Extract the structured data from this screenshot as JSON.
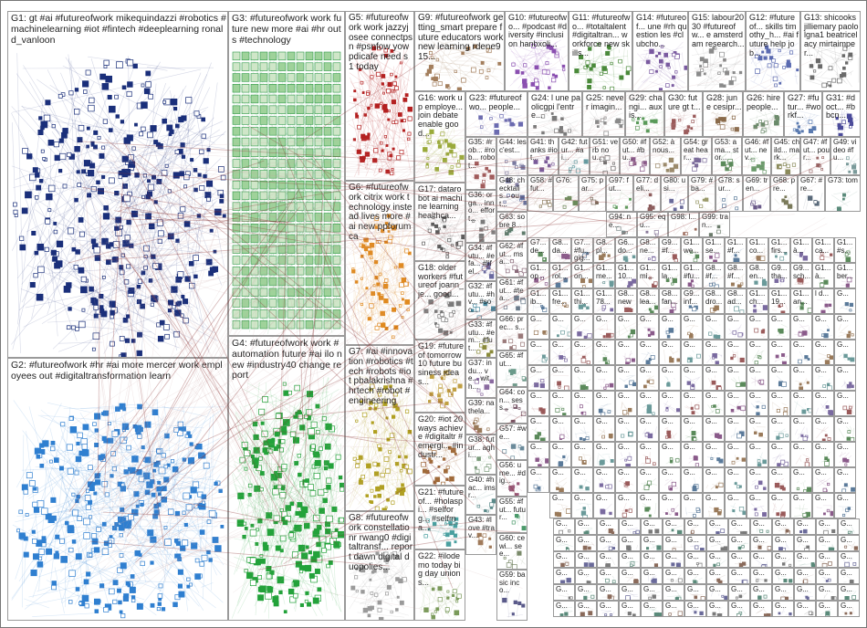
{
  "groups": [
    {
      "id": "G1",
      "label": "G1: gt #ai #futureofwork mikequindazzi #robotics #machinelearning #iot #fintech #deeplearning ronald_vanloon",
      "color": "#1a2f7a"
    },
    {
      "id": "G2",
      "label": "G2: #futureofwork #hr #ai more mercer work employees out #digitaltransformation learn",
      "color": "#2f7fd0"
    },
    {
      "id": "G3",
      "label": "G3: #futureofwork work future new more #ai #hr out s #technology",
      "color": "#2e9a48"
    },
    {
      "id": "G4",
      "label": "G4: #futureofwork work #automation future #ai ilo new #industry40 change report",
      "color": "#23a23a"
    },
    {
      "id": "G5",
      "label": "G5: #futureofwork work jazzyjosee connectpsn #psnfow yowpdicafe need s 1 today",
      "color": "#b42020"
    },
    {
      "id": "G6",
      "label": "G6: #futureofwork citrix work technology instead lives more #ai new ppforumca",
      "color": "#e08a20"
    },
    {
      "id": "G7",
      "label": "G7: #ai #innovation #robotics #tech #robots #iot pbalakrishna #hrtech #robot #engineering",
      "color": "#b0a020"
    },
    {
      "id": "G8",
      "label": "G8: #futureofwork constellationr rwang0 #digitaltransf... report dawn digital duopolies...",
      "color": "#9a9a9a"
    },
    {
      "id": "G9",
      "label": "G9: #futureofwork getting_smart prepare future educators work new learning rdene915...",
      "color": "#a37e5c"
    },
    {
      "id": "G10",
      "label": "G10: #futureofwo... #podcast #diversity #inclusion hanbxoli...",
      "color": "#8a4fb0"
    },
    {
      "id": "G11",
      "label": "G11: #futureofwo... #totaltalent #digitaltran... workforce new skills...",
      "color": "#4a8a3a"
    },
    {
      "id": "G12",
      "label": "G12: #futureof... skills timothy_h... #ai future help job...",
      "color": "#5a6ab0"
    },
    {
      "id": "G13",
      "label": "G13: shicooks jilliemary paololgna1 beatricelacy mirtaimper...",
      "color": "#6a6a6a"
    },
    {
      "id": "G14",
      "label": "G14: #futureof... une #rh question les #clubcho...",
      "color": "#7a5aa0"
    },
    {
      "id": "G15",
      "label": "G15: labour2030 #futureofw... e amsterdam research...",
      "color": "#8a8a8a"
    },
    {
      "id": "G16",
      "label": "G16: work up employe... join debate enable good...",
      "color": "#9aaa3a"
    },
    {
      "id": "G17",
      "label": "G17: datarobot ai machine learning healthca...",
      "color": "#5a5a5a"
    },
    {
      "id": "G18",
      "label": "G18: older workers #futureof joann_je... good...",
      "color": "#7a7a7a"
    },
    {
      "id": "G19",
      "label": "G19: #futureof tomorrow 10 future business ideas...",
      "color": "#c0a040"
    },
    {
      "id": "G20",
      "label": "G20: #iot 20 ways achieve #digitaltr #emergi... #industr...",
      "color": "#a06a3a"
    },
    {
      "id": "G21",
      "label": "G21: #futureof... #holaspi... #selforg... #selfma...",
      "color": "#4aa0a0"
    },
    {
      "id": "G22",
      "label": "G22: #ilodemo today big day unions...",
      "color": "#7a9a5a"
    },
    {
      "id": "G23",
      "label": "G23: #futureofwo... people...",
      "color": "#6a6ab0"
    },
    {
      "id": "G24",
      "label": "G24: l une paolicgpi l'entre...",
      "color": "#7a7a7a"
    },
    {
      "id": "G25",
      "label": "G25: never imagin...",
      "color": "#8a8a8a"
    },
    {
      "id": "G26",
      "label": "G26: hire people...",
      "color": "#6a8a6a"
    },
    {
      "id": "G27",
      "label": "G27: #futur... #workf...",
      "color": "#5a7ab0"
    },
    {
      "id": "G28",
      "label": "G28: june cesipr...",
      "color": "#8a6a4a"
    },
    {
      "id": "G29",
      "label": "G29: changi... auxis...",
      "color": "#5a9a5a"
    },
    {
      "id": "G30",
      "label": "G30: future gt t...",
      "color": "#9a5a5a"
    },
    {
      "id": "G31",
      "label": "G31: #doct... #bbcn...",
      "color": "#4a4a9a"
    },
    {
      "id": "G32",
      "label": "G32: #futu... #hv... #soc...",
      "color": "#4a8aa0"
    },
    {
      "id": "G33",
      "label": "G33: #futu... #em... #fut...",
      "color": "#8a8a3a"
    },
    {
      "id": "G34",
      "label": "G34: #futu... #efa... #lifel...",
      "color": "#6a6aa0"
    },
    {
      "id": "G35",
      "label": "G35: #rob... #rob... robot...",
      "color": "#a05a5a"
    },
    {
      "id": "G36",
      "label": "G36: orga... inno... effort...",
      "color": "#7a7a7a"
    },
    {
      "id": "G37",
      "label": "G37: indu... ve... with...",
      "color": "#8a6aa0"
    },
    {
      "id": "G38",
      "label": "G38: futur... aghi...",
      "color": "#7a9a7a"
    },
    {
      "id": "G39",
      "label": "G39: na thela...",
      "color": "#9a7a5a"
    },
    {
      "id": "G40",
      "label": "G40: #hac... imsr...",
      "color": "#5a8a8a"
    },
    {
      "id": "G41",
      "label": "G41: thanks #iot...",
      "color": "#7a5a9a"
    },
    {
      "id": "G42",
      "label": "G42: futur... #ai...",
      "color": "#5a9aa0"
    },
    {
      "id": "G43",
      "label": "G43: #love #trav...",
      "color": "#a07a5a"
    },
    {
      "id": "G44",
      "label": "G44: les c'est...",
      "color": "#7a7aa0"
    },
    {
      "id": "G45",
      "label": "G45: child... mark...",
      "color": "#8a8a5a"
    },
    {
      "id": "G46",
      "label": "G46: #fut... nev...",
      "color": "#6a9a6a"
    },
    {
      "id": "G47",
      "label": "G47: #fut... pour...",
      "color": "#9a6a6a"
    },
    {
      "id": "G48",
      "label": "G48: checktalis... out...",
      "color": "#5a6a9a"
    },
    {
      "id": "G49",
      "label": "G49: video #fu...",
      "color": "#7a9a9a"
    },
    {
      "id": "G50",
      "label": "G50: #fut... #bu...",
      "color": "#8a5a8a"
    },
    {
      "id": "G51",
      "label": "G51: verb nou...",
      "color": "#6a6a6a"
    },
    {
      "id": "G52",
      "label": "G52: à nous...",
      "color": "#9a8a6a"
    },
    {
      "id": "G53",
      "label": "G53: ama... stor...",
      "color": "#5a8a5a"
    },
    {
      "id": "G54",
      "label": "G54: great hear...",
      "color": "#7a6a9a"
    },
    {
      "id": "G55",
      "label": "G55: #fut... futur...",
      "color": "#4a9a6a"
    },
    {
      "id": "G56",
      "label": "G56: ume... #dig...",
      "color": "#9a5a7a"
    },
    {
      "id": "G57",
      "label": "G57: #we...",
      "color": "#6a8a9a"
    },
    {
      "id": "G58",
      "label": "G58: #fut...",
      "color": "#8a7a5a"
    },
    {
      "id": "G59",
      "label": "G59: basic inco...",
      "color": "#5a5a8a"
    },
    {
      "id": "G60",
      "label": "G60: cewi... see...",
      "color": "#7a8a6a"
    },
    {
      "id": "G61",
      "label": "G61: #fut... #tea...",
      "color": "#6a7a8a"
    },
    {
      "id": "G62",
      "label": "G62: #fut... msa...",
      "color": "#8a6a7a"
    },
    {
      "id": "G63",
      "label": "G63: sobre 8...",
      "color": "#5a7a6a"
    },
    {
      "id": "G64",
      "label": "G64: con... sess...",
      "color": "#7a5a6a"
    },
    {
      "id": "G65",
      "label": "G65: #fut...",
      "color": "#6a9a8a"
    },
    {
      "id": "G66",
      "label": "G66: prec... s...",
      "color": "#9a7a7a"
    },
    {
      "id": "G67",
      "label": "G67: #re...",
      "color": "#5a6a7a"
    },
    {
      "id": "G68",
      "label": "G68: pre...",
      "color": "#7a7a5a"
    },
    {
      "id": "G69",
      "label": "G69: tren...",
      "color": "#6a5a8a"
    },
    {
      "id": "G70",
      "label": "G70:",
      "color": "#8a8a7a"
    },
    {
      "id": "G73",
      "label": "G73: tom",
      "color": "#5a8a7a"
    },
    {
      "id": "G75",
      "label": "G75: par...",
      "color": "#7a6a5a"
    },
    {
      "id": "G76",
      "label": "G76:",
      "color": "#6a8a5a"
    },
    {
      "id": "G77",
      "label": "G77: deli...",
      "color": "#8a5a5a"
    },
    {
      "id": "G78",
      "label": "G78: sur...",
      "color": "#5a7a9a"
    },
    {
      "id": "G79",
      "label": "G79: #ba...",
      "color": "#9a9a6a"
    },
    {
      "id": "G80",
      "label": "G80: usi...",
      "color": "#6a6a9a"
    },
    {
      "id": "G94",
      "label": "G94: ne...",
      "color": "#7a8a8a"
    },
    {
      "id": "G95",
      "label": "G95: equ...",
      "color": "#8a7a9a"
    },
    {
      "id": "G97",
      "label": "G97: fut...",
      "color": "#5a9a5a"
    },
    {
      "id": "G98",
      "label": "G98: l...",
      "color": "#9a6a5a"
    },
    {
      "id": "G99",
      "label": "G99: tran...",
      "color": "#6a7a6a"
    }
  ],
  "small_labels": [
    "G7... de...",
    "G8... da...",
    "G7... #fu... gig...",
    "G8... pl...",
    "G6... do...",
    "G8... ne...",
    "G9... #f...",
    "G1... we...",
    "G1... se...",
    "G1... #f...",
    "G1... co...",
    "G1... firs...",
    "G1... à...",
    "G1... ca...",
    "G1... #s...",
    "G1... op...",
    "G1... rol...",
    "G1... on...",
    "G1... me...",
    "G1... 10...",
    "G1... mi...",
    "G1... la...",
    "G1... #fu...",
    "G8... #f...",
    "G8... #f...",
    "G8... en...",
    "G9... tha...",
    "G9... sch...",
    "G1... à...",
    "G1... ber...",
    "G1... ib...",
    "G1... fre...",
    "G1... thi...",
    "G1... 78...",
    "G8... new",
    "G8... lea...",
    "G8... fan...",
    "G9... inf...",
    "G8... dro...",
    "G8... ad...",
    "G1... ch...",
    "G1... 19...",
    "G1... an...",
    "l d..."
  ],
  "micro_label": "G...",
  "colors": {
    "border": "#9a9a9a",
    "edge": "#c8a0a0",
    "edge_dark": "#8a3030",
    "bg": "#ffffff"
  }
}
